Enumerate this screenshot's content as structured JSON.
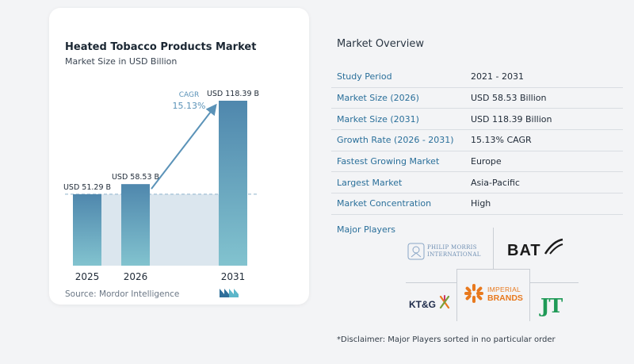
{
  "chart_data": {
    "type": "bar",
    "title": "Heated Tobacco Products Market",
    "subtitle": "Market Size in USD Billion",
    "categories": [
      "2025",
      "2026",
      "2031"
    ],
    "values": [
      51.29,
      58.53,
      118.39
    ],
    "value_labels": [
      "USD 51.29 B",
      "USD 58.53 B",
      "USD 118.39 B"
    ],
    "cagr_label": "CAGR",
    "cagr_value": "15.13%",
    "ylim": [
      0,
      118.39
    ],
    "colors": {
      "bar_top": "#4f87ad",
      "bar_bottom": "#82c3cf",
      "band": "#dbe6ee",
      "arrow": "#5b93b8"
    }
  },
  "source": "Source:  Mordor Intelligence",
  "overview": {
    "title": "Market Overview",
    "rows": [
      {
        "label": "Study Period",
        "value": "2021 - 2031"
      },
      {
        "label": "Market Size (2026)",
        "value": "USD 58.53 Billion"
      },
      {
        "label": "Market Size (2031)",
        "value": "USD 118.39 Billion"
      },
      {
        "label": "Growth Rate (2026 - 2031)",
        "value": "15.13% CAGR"
      },
      {
        "label": "Fastest Growing Market",
        "value": "Europe"
      },
      {
        "label": "Largest Market",
        "value": "Asia-Pacific"
      },
      {
        "label": "Market Concentration",
        "value": "High"
      }
    ]
  },
  "players": {
    "title": "Major Players",
    "logos": {
      "pmi_line1": "PHILIP MORRIS",
      "pmi_line2": "INTERNATIONAL",
      "bat": "BAT",
      "imperial_line1": "IMPERIAL",
      "imperial_line2": "BRANDS",
      "ktg": "KT&G",
      "jt": "JT"
    }
  },
  "disclaimer": "*Disclaimer: Major Players sorted in no particular order"
}
